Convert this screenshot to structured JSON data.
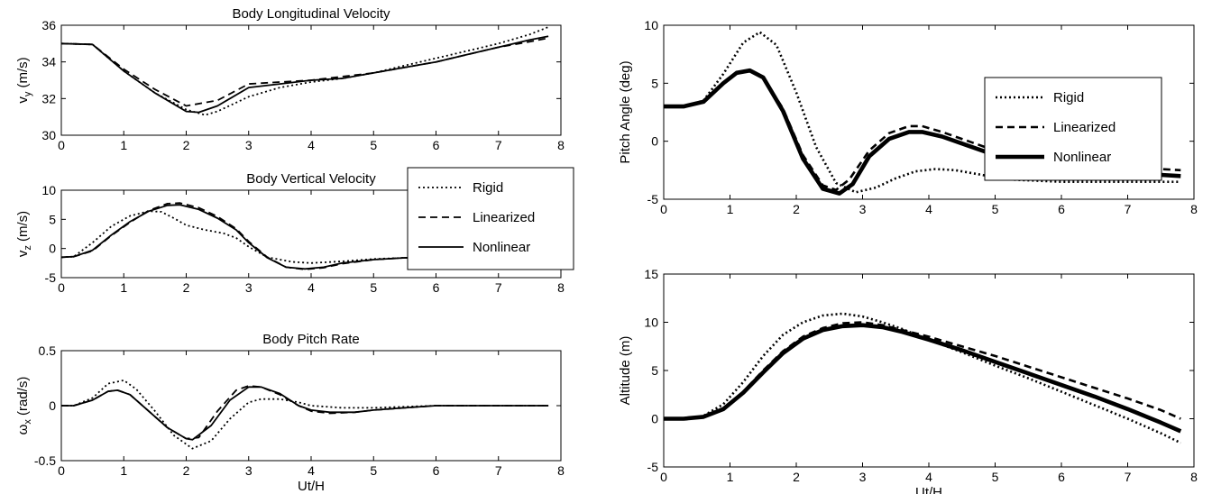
{
  "chart_data": [
    {
      "type": "line",
      "title": "Body Longitudinal Velocity",
      "xlabel": "",
      "ylabel": "v_y (m/s)",
      "ylabel_main": "v",
      "ylabel_sub": "y",
      "ylabel_tail": " (m/s)",
      "xlim": [
        0,
        8
      ],
      "ylim": [
        30,
        36
      ],
      "xticks": [
        "0",
        "1",
        "2",
        "3",
        "4",
        "5",
        "6",
        "7",
        "8"
      ],
      "yticks": [
        "30",
        "32",
        "34",
        "36"
      ],
      "ytick_values": [
        30,
        32,
        34,
        36
      ],
      "grid": false,
      "series": [
        {
          "x": [
            0,
            0.5,
            1,
            1.5,
            2,
            2.3,
            2.5,
            3,
            3.5,
            4,
            4.5,
            5,
            5.5,
            6,
            6.5,
            7,
            7.5,
            7.8
          ],
          "y": [
            35,
            34.95,
            33.5,
            32.3,
            31.4,
            31.1,
            31.3,
            32.1,
            32.6,
            32.9,
            33.1,
            33.4,
            33.8,
            34.2,
            34.6,
            35.0,
            35.5,
            35.9
          ]
        },
        {
          "x": [
            0,
            0.5,
            1,
            1.5,
            2,
            2.5,
            3,
            3.5,
            4,
            4.5,
            5,
            5.5,
            6,
            6.5,
            7,
            7.5,
            7.8
          ],
          "y": [
            35,
            34.95,
            33.6,
            32.5,
            31.6,
            31.9,
            32.8,
            32.9,
            33.0,
            33.2,
            33.4,
            33.7,
            34.0,
            34.4,
            34.8,
            35.1,
            35.3
          ]
        },
        {
          "x": [
            0,
            0.5,
            1,
            1.5,
            2,
            2.2,
            2.5,
            3,
            3.5,
            4,
            4.5,
            5,
            5.5,
            6,
            6.5,
            7,
            7.5,
            7.8
          ],
          "y": [
            35,
            34.95,
            33.5,
            32.3,
            31.3,
            31.25,
            31.6,
            32.6,
            32.8,
            33.0,
            33.1,
            33.4,
            33.7,
            34.0,
            34.4,
            34.8,
            35.2,
            35.4
          ]
        }
      ]
    },
    {
      "type": "line",
      "title": "Body Vertical Velocity",
      "xlabel": "",
      "ylabel": "v_z (m/s)",
      "ylabel_main": "v",
      "ylabel_sub": "z",
      "ylabel_tail": " (m/s)",
      "xlim": [
        0,
        8
      ],
      "ylim": [
        -5,
        10
      ],
      "xticks": [
        "0",
        "1",
        "2",
        "3",
        "4",
        "5",
        "6",
        "7",
        "8"
      ],
      "yticks": [
        "-5",
        "0",
        "5",
        "10"
      ],
      "ytick_values": [
        -5,
        0,
        5,
        10
      ],
      "grid": false,
      "legend": {
        "placement": "top-right",
        "entries": [
          "Rigid",
          "Linearized",
          "Nonlinear"
        ]
      },
      "series": [
        {
          "name": "Rigid",
          "x": [
            0,
            0.2,
            0.5,
            0.8,
            1.1,
            1.4,
            1.6,
            1.8,
            2.0,
            2.3,
            2.6,
            2.8,
            3.0,
            3.3,
            3.7,
            4.0,
            4.5,
            5.0,
            5.5,
            6.0,
            6.5,
            7.0,
            7.5,
            7.8
          ],
          "y": [
            -1.5,
            -1.4,
            1.0,
            3.8,
            5.6,
            6.4,
            6.3,
            5.2,
            4.0,
            3.2,
            2.6,
            1.8,
            0.3,
            -1.5,
            -2.3,
            -2.5,
            -2.2,
            -1.8,
            -1.6,
            -1.5,
            -1.5,
            -1.5,
            -1.5,
            -1.5
          ]
        },
        {
          "name": "Linearized",
          "x": [
            0,
            0.2,
            0.5,
            0.8,
            1.1,
            1.4,
            1.7,
            1.9,
            2.2,
            2.5,
            2.8,
            3.0,
            3.3,
            3.6,
            3.9,
            4.2,
            4.5,
            5.0,
            5.5,
            6.0,
            6.5,
            7.0,
            7.5,
            7.8
          ],
          "y": [
            -1.5,
            -1.4,
            -0.4,
            2.2,
            4.5,
            6.5,
            7.7,
            7.8,
            7.0,
            5.5,
            3.4,
            1.2,
            -1.5,
            -3.2,
            -3.6,
            -3.3,
            -2.6,
            -1.9,
            -1.6,
            -1.5,
            -1.5,
            -1.5,
            -1.5,
            -1.5
          ]
        },
        {
          "name": "Nonlinear",
          "x": [
            0,
            0.2,
            0.5,
            0.8,
            1.1,
            1.4,
            1.7,
            1.9,
            2.2,
            2.5,
            2.8,
            3.0,
            3.3,
            3.6,
            3.9,
            4.2,
            4.5,
            5.0,
            5.5,
            6.0,
            6.5,
            7.0,
            7.5,
            7.8
          ],
          "y": [
            -1.5,
            -1.4,
            -0.3,
            2.3,
            4.6,
            6.4,
            7.4,
            7.5,
            6.7,
            5.2,
            3.2,
            1.0,
            -1.6,
            -3.2,
            -3.5,
            -3.2,
            -2.5,
            -1.9,
            -1.6,
            -1.5,
            -1.5,
            -1.5,
            -1.5,
            -1.5
          ]
        }
      ]
    },
    {
      "type": "line",
      "title": "Body Pitch Rate",
      "xlabel": "Ut/H",
      "ylabel": "ω_x (rad/s)",
      "ylabel_main": "ω",
      "ylabel_sub": "x",
      "ylabel_tail": " (rad/s)",
      "xlim": [
        0,
        8
      ],
      "ylim": [
        -0.5,
        0.5
      ],
      "xticks": [
        "0",
        "1",
        "2",
        "3",
        "4",
        "5",
        "6",
        "7",
        "8"
      ],
      "yticks": [
        "-0.5",
        "0",
        "0.5"
      ],
      "ytick_values": [
        -0.5,
        0,
        0.5
      ],
      "grid": false,
      "series": [
        {
          "x": [
            0,
            0.2,
            0.5,
            0.75,
            1.0,
            1.2,
            1.5,
            1.8,
            2.1,
            2.4,
            2.7,
            3.0,
            3.2,
            3.5,
            3.8,
            4.0,
            4.5,
            5.0,
            5.5,
            6.0,
            7.0,
            7.8
          ],
          "y": [
            0,
            0.0,
            0.07,
            0.2,
            0.23,
            0.15,
            -0.05,
            -0.27,
            -0.39,
            -0.32,
            -0.12,
            0.03,
            0.06,
            0.06,
            0.03,
            0.0,
            -0.02,
            -0.02,
            -0.01,
            0.0,
            0.0,
            0.0
          ]
        },
        {
          "x": [
            0,
            0.2,
            0.5,
            0.75,
            0.9,
            1.1,
            1.4,
            1.7,
            2.0,
            2.2,
            2.5,
            2.8,
            3.0,
            3.2,
            3.5,
            3.8,
            4.0,
            4.3,
            4.7,
            5.0,
            5.5,
            6.0,
            7.0,
            7.8
          ],
          "y": [
            0,
            0.0,
            0.05,
            0.13,
            0.14,
            0.1,
            -0.05,
            -0.2,
            -0.3,
            -0.29,
            -0.05,
            0.14,
            0.18,
            0.17,
            0.1,
            0.0,
            -0.05,
            -0.07,
            -0.06,
            -0.04,
            -0.02,
            0.0,
            0.0,
            0.0
          ]
        },
        {
          "x": [
            0,
            0.2,
            0.5,
            0.75,
            0.9,
            1.1,
            1.4,
            1.7,
            2.0,
            2.1,
            2.4,
            2.7,
            3.0,
            3.2,
            3.5,
            3.8,
            4.0,
            4.3,
            4.7,
            5.0,
            5.5,
            6.0,
            7.0,
            7.8
          ],
          "y": [
            0,
            0.0,
            0.05,
            0.13,
            0.14,
            0.1,
            -0.05,
            -0.2,
            -0.3,
            -0.31,
            -0.18,
            0.05,
            0.17,
            0.17,
            0.11,
            0.0,
            -0.04,
            -0.06,
            -0.06,
            -0.04,
            -0.02,
            0.0,
            0.0,
            0.0
          ]
        }
      ]
    },
    {
      "type": "line",
      "title": "",
      "xlabel": "",
      "ylabel": "Pitch Angle (deg)",
      "xlim": [
        0,
        8
      ],
      "ylim": [
        -5,
        10
      ],
      "xticks": [
        "0",
        "1",
        "2",
        "3",
        "4",
        "5",
        "6",
        "7",
        "8"
      ],
      "yticks": [
        "-5",
        "0",
        "5",
        "10"
      ],
      "ytick_values": [
        -5,
        0,
        5,
        10
      ],
      "grid": false,
      "legend": {
        "placement": "top-right",
        "entries": [
          "Rigid",
          "Linearized",
          "Nonlinear"
        ]
      },
      "series": [
        {
          "name": "Rigid",
          "x": [
            0,
            0.3,
            0.6,
            0.9,
            1.2,
            1.45,
            1.7,
            2.0,
            2.3,
            2.6,
            2.9,
            3.2,
            3.5,
            3.8,
            4.1,
            4.4,
            4.8,
            5.2,
            5.6,
            6.0,
            6.5,
            7.0,
            7.5,
            7.8
          ],
          "y": [
            3,
            3.0,
            3.5,
            5.8,
            8.5,
            9.4,
            8.3,
            4.2,
            -0.5,
            -3.6,
            -4.4,
            -4.0,
            -3.2,
            -2.6,
            -2.4,
            -2.5,
            -2.9,
            -3.3,
            -3.4,
            -3.5,
            -3.5,
            -3.5,
            -3.5,
            -3.5
          ]
        },
        {
          "name": "Linearized",
          "x": [
            0,
            0.3,
            0.6,
            0.9,
            1.1,
            1.3,
            1.5,
            1.8,
            2.1,
            2.4,
            2.6,
            2.8,
            3.1,
            3.4,
            3.7,
            3.9,
            4.2,
            4.6,
            5.0,
            5.5,
            6.0,
            6.5,
            7.0,
            7.5,
            7.8
          ],
          "y": [
            3,
            3.0,
            3.4,
            5.0,
            5.9,
            6.1,
            5.5,
            2.8,
            -1.2,
            -3.8,
            -4.2,
            -3.3,
            -0.8,
            0.7,
            1.3,
            1.3,
            0.8,
            0.0,
            -0.8,
            -1.4,
            -1.8,
            -2.0,
            -2.2,
            -2.4,
            -2.5
          ]
        },
        {
          "name": "Nonlinear",
          "x": [
            0,
            0.3,
            0.6,
            0.9,
            1.1,
            1.3,
            1.5,
            1.8,
            2.1,
            2.4,
            2.65,
            2.85,
            3.1,
            3.4,
            3.7,
            3.9,
            4.2,
            4.6,
            5.0,
            5.5,
            6.0,
            6.5,
            7.0,
            7.5,
            7.8
          ],
          "y": [
            3,
            3.0,
            3.4,
            5.0,
            5.9,
            6.1,
            5.5,
            2.6,
            -1.5,
            -4.1,
            -4.5,
            -3.7,
            -1.3,
            0.2,
            0.8,
            0.8,
            0.4,
            -0.4,
            -1.2,
            -1.8,
            -2.3,
            -2.5,
            -2.7,
            -2.9,
            -3.0
          ]
        }
      ]
    },
    {
      "type": "line",
      "title": "",
      "xlabel": "Ut/H",
      "ylabel": "Altitude (m)",
      "xlim": [
        0,
        8
      ],
      "ylim": [
        -5,
        15
      ],
      "xticks": [
        "0",
        "1",
        "2",
        "3",
        "4",
        "5",
        "6",
        "7",
        "8"
      ],
      "yticks": [
        "-5",
        "0",
        "5",
        "10",
        "15"
      ],
      "ytick_values": [
        -5,
        0,
        5,
        10,
        15
      ],
      "grid": false,
      "series": [
        {
          "x": [
            0,
            0.3,
            0.6,
            0.9,
            1.2,
            1.5,
            1.8,
            2.1,
            2.4,
            2.7,
            3.0,
            3.3,
            3.6,
            4.0,
            4.5,
            5.0,
            5.5,
            6.0,
            6.5,
            7.0,
            7.5,
            7.8
          ],
          "y": [
            0,
            0.0,
            0.3,
            1.5,
            3.8,
            6.5,
            8.7,
            10.0,
            10.7,
            10.9,
            10.6,
            10.0,
            9.3,
            8.2,
            6.9,
            5.5,
            4.2,
            2.8,
            1.4,
            0.0,
            -1.5,
            -2.5
          ]
        },
        {
          "x": [
            0,
            0.3,
            0.6,
            0.9,
            1.2,
            1.5,
            1.8,
            2.1,
            2.4,
            2.7,
            3.0,
            3.3,
            3.6,
            4.0,
            4.5,
            5.0,
            5.5,
            6.0,
            6.5,
            7.0,
            7.5,
            7.8
          ],
          "y": [
            0,
            0.0,
            0.2,
            1.0,
            2.8,
            5.0,
            7.0,
            8.5,
            9.4,
            9.9,
            10.0,
            9.7,
            9.2,
            8.5,
            7.5,
            6.5,
            5.4,
            4.3,
            3.2,
            2.1,
            0.9,
            0.0
          ]
        },
        {
          "x": [
            0,
            0.3,
            0.6,
            0.9,
            1.2,
            1.5,
            1.8,
            2.1,
            2.4,
            2.7,
            3.0,
            3.3,
            3.6,
            4.0,
            4.5,
            5.0,
            5.5,
            6.0,
            6.5,
            7.0,
            7.5,
            7.8
          ],
          "y": [
            0,
            0.0,
            0.2,
            1.0,
            2.7,
            4.8,
            6.8,
            8.3,
            9.2,
            9.6,
            9.7,
            9.5,
            9.0,
            8.2,
            7.1,
            5.9,
            4.7,
            3.5,
            2.3,
            1.0,
            -0.4,
            -1.3
          ]
        }
      ]
    }
  ],
  "styles": {
    "series_dash": [
      "2 3",
      "8 5",
      ""
    ],
    "color": "#000000"
  }
}
